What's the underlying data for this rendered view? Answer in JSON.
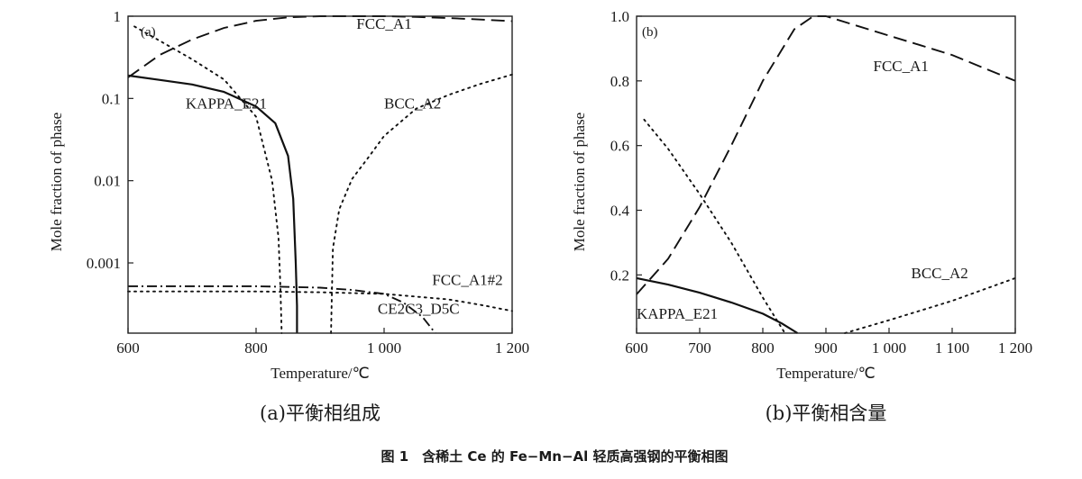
{
  "caption": "图 1　含稀土 Ce 的 Fe−Mn−Al 轻质高强钢的平衡相图",
  "chart_data": [
    {
      "id": "a",
      "type": "line",
      "panel_label": "(a)",
      "subcaption": "(a)平衡相组成",
      "xlabel": "Temperature/℃",
      "ylabel": "Mole fraction of phase",
      "xlim": [
        600,
        1200
      ],
      "ylim": [
        0.00014,
        1
      ],
      "yscale": "log",
      "xticks": [
        600,
        800,
        1000,
        1200
      ],
      "xtick_labels": [
        "600",
        "800",
        "1 000",
        "1 200"
      ],
      "yticks": [
        1,
        0.1,
        0.01,
        0.001
      ],
      "ytick_labels": [
        "1",
        "0.1",
        "0.01",
        "0.001"
      ],
      "grid": false,
      "series": [
        {
          "name": "FCC_A1",
          "style": "dashed",
          "x": [
            600,
            650,
            700,
            750,
            800,
            850,
            900,
            950,
            1000,
            1050,
            1100,
            1150,
            1200
          ],
          "y": [
            0.18,
            0.34,
            0.52,
            0.72,
            0.88,
            0.97,
            1.0,
            1.0,
            1.0,
            0.98,
            0.95,
            0.91,
            0.87
          ]
        },
        {
          "name": "BCC_A2",
          "style": "dotted",
          "x": [
            917,
            920,
            930,
            950,
            975,
            1000,
            1050,
            1100,
            1150,
            1200
          ],
          "y": [
            0.00014,
            0.0015,
            0.0045,
            0.0105,
            0.019,
            0.035,
            0.075,
            0.11,
            0.15,
            0.195
          ]
        },
        {
          "name": "KAPPA_E21",
          "style": "solid",
          "x": [
            600,
            650,
            700,
            750,
            800,
            830,
            850,
            858,
            862,
            864,
            864
          ],
          "y": [
            0.19,
            0.168,
            0.148,
            0.12,
            0.08,
            0.05,
            0.02,
            0.006,
            0.001,
            0.0003,
            0.00014
          ]
        },
        {
          "name": "",
          "style": "dotted",
          "x": [
            610,
            650,
            700,
            750,
            800,
            825,
            835,
            838,
            840
          ],
          "y": [
            0.75,
            0.5,
            0.3,
            0.17,
            0.06,
            0.01,
            0.002,
            0.0005,
            0.00014
          ]
        },
        {
          "name": "FCC_A1#2",
          "style": "dashdot",
          "x": [
            600,
            700,
            800,
            900,
            950,
            1000,
            1030,
            1060,
            1080
          ],
          "y": [
            0.00052,
            0.00052,
            0.00052,
            0.0005,
            0.00047,
            0.00042,
            0.00033,
            0.00022,
            0.00014
          ]
        },
        {
          "name": "CE2C3_D5C",
          "style": "dotted",
          "x": [
            600,
            700,
            800,
            900,
            1000,
            1100,
            1150,
            1200
          ],
          "y": [
            0.00045,
            0.00045,
            0.00045,
            0.00044,
            0.00042,
            0.00036,
            0.00031,
            0.00026
          ]
        }
      ],
      "labels": [
        {
          "text": "FCC_A1",
          "x": 1000,
          "y": 0.7
        },
        {
          "text": "BCC_A2",
          "x": 1000,
          "y": 0.075
        },
        {
          "text": "KAPPA_E21",
          "x": 690,
          "y": 0.075
        },
        {
          "text": "FCC_A1#2",
          "x": 1075,
          "y": 0.00054
        },
        {
          "text": "CE2C3_D5C",
          "x": 990,
          "y": 0.00024
        }
      ]
    },
    {
      "id": "b",
      "type": "line",
      "panel_label": "(b)",
      "subcaption": "(b)平衡相含量",
      "xlabel": "Temperature/℃",
      "ylabel": "Mole fraction of phase",
      "xlim": [
        600,
        1200
      ],
      "ylim": [
        0.02,
        1.0
      ],
      "yscale": "linear",
      "xticks": [
        600,
        700,
        800,
        900,
        1000,
        1100,
        1200
      ],
      "xtick_labels": [
        "600",
        "700",
        "800",
        "900",
        "1 000",
        "1 100",
        "1 200"
      ],
      "yticks": [
        0.2,
        0.4,
        0.6,
        0.8,
        1.0
      ],
      "ytick_labels": [
        "0.2",
        "0.4",
        "0.6",
        "0.8",
        "1.0"
      ],
      "grid": false,
      "series": [
        {
          "name": "FCC_A1",
          "style": "dashed",
          "x": [
            600,
            650,
            700,
            750,
            800,
            850,
            880,
            900,
            950,
            1000,
            1050,
            1100,
            1150,
            1200
          ],
          "y": [
            0.14,
            0.25,
            0.41,
            0.6,
            0.8,
            0.96,
            1.0,
            1.0,
            0.97,
            0.94,
            0.91,
            0.88,
            0.84,
            0.8
          ]
        },
        {
          "name": "BCC_A2",
          "style": "dotted",
          "x": [
            930,
            1000,
            1050,
            1100,
            1150,
            1200
          ],
          "y": [
            0.02,
            0.06,
            0.09,
            0.12,
            0.155,
            0.19
          ]
        },
        {
          "name": "KAPPA_E21",
          "style": "solid",
          "x": [
            600,
            650,
            700,
            750,
            800,
            830,
            855
          ],
          "y": [
            0.19,
            0.17,
            0.145,
            0.115,
            0.08,
            0.05,
            0.02
          ]
        },
        {
          "name": "",
          "style": "dotted",
          "x": [
            612,
            650,
            700,
            750,
            800,
            835
          ],
          "y": [
            0.68,
            0.59,
            0.45,
            0.3,
            0.13,
            0.02
          ]
        }
      ],
      "labels": [
        {
          "text": "FCC_A1",
          "x": 975,
          "y": 0.83
        },
        {
          "text": "BCC_A2",
          "x": 1035,
          "y": 0.19
        },
        {
          "text": "KAPPA_E21",
          "x": 600,
          "y": 0.065
        }
      ]
    }
  ]
}
